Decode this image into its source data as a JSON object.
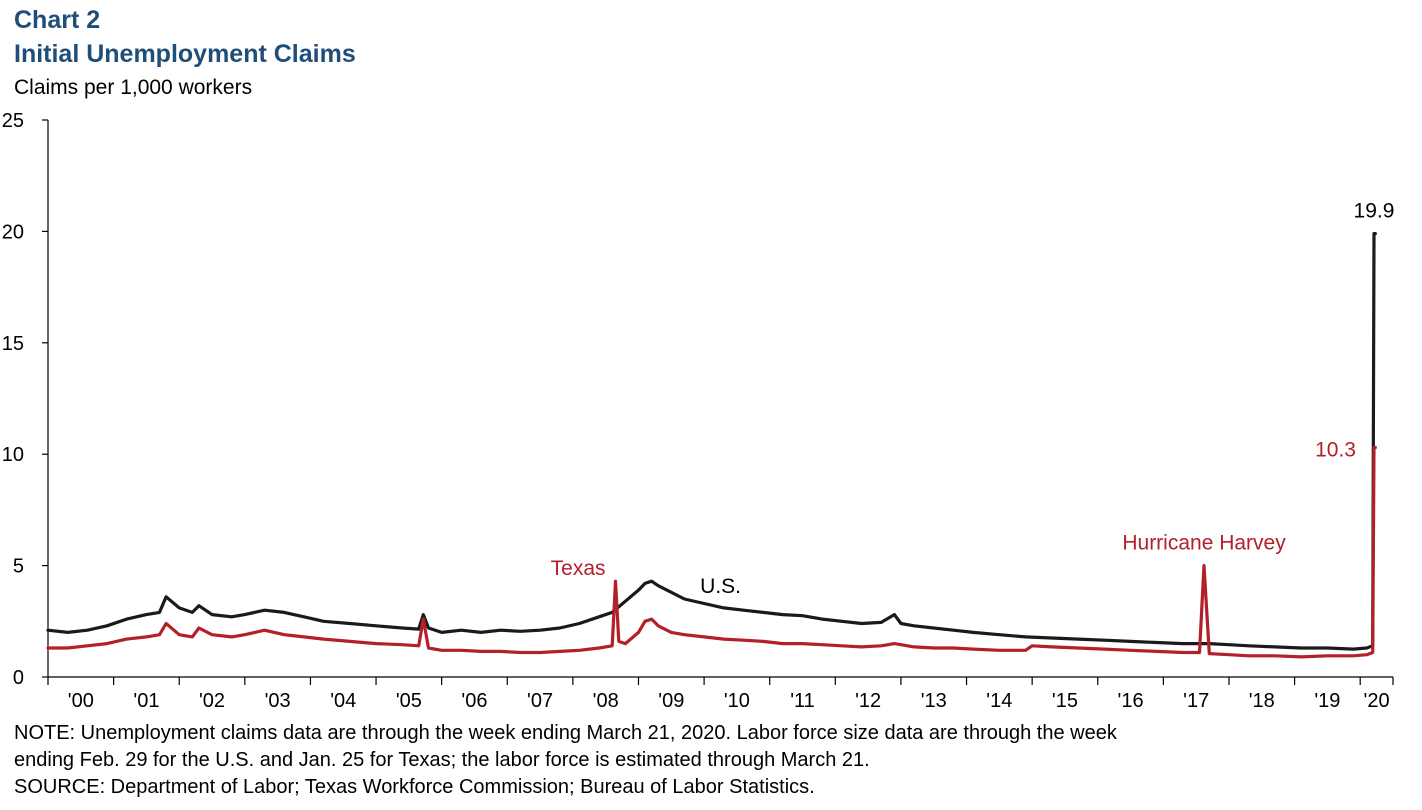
{
  "header": {
    "chart_number": "Chart 2",
    "title": "Initial Unemployment Claims",
    "ylabel": "Claims per 1,000 workers"
  },
  "notes": {
    "note": "NOTE: Unemployment claims data are through the week ending March 21, 2020. Labor force size data are through the week",
    "note_cont": "ending Feb. 29 for the U.S. and Jan. 25 for Texas; the labor force is estimated through March 21.",
    "source": "SOURCE: Department of Labor; Texas Workforce Commission; Bureau of Labor Statistics."
  },
  "chart_data": {
    "type": "line",
    "title": "Initial Unemployment Claims",
    "ylabel": "Claims per 1,000 workers",
    "xlabel": "",
    "ylim": [
      0,
      25
    ],
    "yticks": [
      0,
      5,
      10,
      15,
      20,
      25
    ],
    "xlim": [
      2000.0,
      2020.5
    ],
    "x_tick_labels": [
      "'00",
      "'01",
      "'02",
      "'03",
      "'04",
      "'05",
      "'06",
      "'07",
      "'08",
      "'09",
      "'10",
      "'11",
      "'12",
      "'13",
      "'14",
      "'15",
      "'16",
      "'17",
      "'18",
      "'19",
      "'20"
    ],
    "grid": false,
    "legend": "none (series labeled directly)",
    "colors": {
      "us": "#1a1a1a",
      "texas": "#b2202a",
      "axis": "#000000"
    },
    "series": [
      {
        "name": "U.S.",
        "label_text": "U.S.",
        "x": [
          2000.0,
          2000.3,
          2000.6,
          2000.9,
          2001.2,
          2001.5,
          2001.7,
          2001.8,
          2002.0,
          2002.2,
          2002.3,
          2002.5,
          2002.8,
          2003.0,
          2003.3,
          2003.6,
          2003.9,
          2004.2,
          2004.6,
          2005.0,
          2005.4,
          2005.65,
          2005.72,
          2005.8,
          2006.0,
          2006.3,
          2006.6,
          2006.9,
          2007.2,
          2007.5,
          2007.8,
          2008.1,
          2008.4,
          2008.6,
          2008.8,
          2009.0,
          2009.1,
          2009.2,
          2009.3,
          2009.5,
          2009.7,
          2010.0,
          2010.3,
          2010.6,
          2010.9,
          2011.2,
          2011.5,
          2011.8,
          2012.1,
          2012.4,
          2012.7,
          2012.9,
          2013.0,
          2013.2,
          2013.5,
          2013.8,
          2014.1,
          2014.5,
          2014.9,
          2015.3,
          2015.7,
          2016.1,
          2016.5,
          2016.9,
          2017.3,
          2017.7,
          2018.0,
          2018.3,
          2018.7,
          2019.1,
          2019.5,
          2019.9,
          2020.1,
          2020.19,
          2020.21,
          2020.23
        ],
        "y": [
          2.1,
          2.0,
          2.1,
          2.3,
          2.6,
          2.8,
          2.9,
          3.6,
          3.1,
          2.9,
          3.2,
          2.8,
          2.7,
          2.8,
          3.0,
          2.9,
          2.7,
          2.5,
          2.4,
          2.3,
          2.2,
          2.15,
          2.8,
          2.2,
          2.0,
          2.1,
          2.0,
          2.1,
          2.05,
          2.1,
          2.2,
          2.4,
          2.7,
          2.9,
          3.4,
          3.9,
          4.2,
          4.3,
          4.1,
          3.8,
          3.5,
          3.3,
          3.1,
          3.0,
          2.9,
          2.8,
          2.75,
          2.6,
          2.5,
          2.4,
          2.45,
          2.8,
          2.4,
          2.3,
          2.2,
          2.1,
          2.0,
          1.9,
          1.8,
          1.75,
          1.7,
          1.65,
          1.6,
          1.55,
          1.5,
          1.5,
          1.45,
          1.4,
          1.35,
          1.3,
          1.3,
          1.25,
          1.3,
          1.4,
          19.9,
          19.9
        ]
      },
      {
        "name": "Texas",
        "label_text": "Texas",
        "x": [
          2000.0,
          2000.3,
          2000.6,
          2000.9,
          2001.2,
          2001.5,
          2001.7,
          2001.8,
          2002.0,
          2002.2,
          2002.3,
          2002.5,
          2002.8,
          2003.0,
          2003.3,
          2003.6,
          2003.9,
          2004.2,
          2004.6,
          2005.0,
          2005.4,
          2005.65,
          2005.72,
          2005.8,
          2006.0,
          2006.3,
          2006.6,
          2006.9,
          2007.2,
          2007.5,
          2007.8,
          2008.1,
          2008.4,
          2008.6,
          2008.65,
          2008.7,
          2008.8,
          2009.0,
          2009.1,
          2009.2,
          2009.3,
          2009.5,
          2009.7,
          2010.0,
          2010.3,
          2010.6,
          2010.9,
          2011.2,
          2011.5,
          2011.8,
          2012.1,
          2012.4,
          2012.7,
          2012.9,
          2013.2,
          2013.5,
          2013.8,
          2014.1,
          2014.5,
          2014.9,
          2015.0,
          2015.3,
          2015.7,
          2016.1,
          2016.5,
          2016.9,
          2017.3,
          2017.55,
          2017.62,
          2017.7,
          2018.0,
          2018.3,
          2018.7,
          2019.1,
          2019.5,
          2019.9,
          2020.1,
          2020.19,
          2020.21,
          2020.23
        ],
        "y": [
          1.3,
          1.3,
          1.4,
          1.5,
          1.7,
          1.8,
          1.9,
          2.4,
          1.9,
          1.8,
          2.2,
          1.9,
          1.8,
          1.9,
          2.1,
          1.9,
          1.8,
          1.7,
          1.6,
          1.5,
          1.45,
          1.4,
          2.6,
          1.3,
          1.2,
          1.2,
          1.15,
          1.15,
          1.1,
          1.1,
          1.15,
          1.2,
          1.3,
          1.4,
          4.3,
          1.6,
          1.5,
          2.0,
          2.5,
          2.6,
          2.3,
          2.0,
          1.9,
          1.8,
          1.7,
          1.65,
          1.6,
          1.5,
          1.5,
          1.45,
          1.4,
          1.35,
          1.4,
          1.5,
          1.35,
          1.3,
          1.3,
          1.25,
          1.2,
          1.2,
          1.4,
          1.35,
          1.3,
          1.25,
          1.2,
          1.15,
          1.1,
          1.1,
          5.0,
          1.05,
          1.0,
          0.95,
          0.95,
          0.9,
          0.95,
          0.95,
          1.0,
          1.1,
          10.3,
          10.3
        ]
      }
    ],
    "annotations": [
      {
        "text": "19.9",
        "series": "U.S.",
        "x": 2020.21,
        "y": 19.9,
        "position": "above"
      },
      {
        "text": "10.3",
        "series": "Texas",
        "x": 2020.21,
        "y": 10.3,
        "position": "left"
      },
      {
        "text": "Hurricane Harvey",
        "series": "Texas",
        "x": 2017.62,
        "y": 5.0,
        "position": "above"
      },
      {
        "text": "Texas",
        "series": "Texas",
        "x": 2008.65,
        "y": 4.3,
        "position": "left"
      },
      {
        "text": "U.S.",
        "series": "U.S.",
        "x": 2009.3,
        "y": 4.3,
        "position": "right"
      }
    ]
  }
}
